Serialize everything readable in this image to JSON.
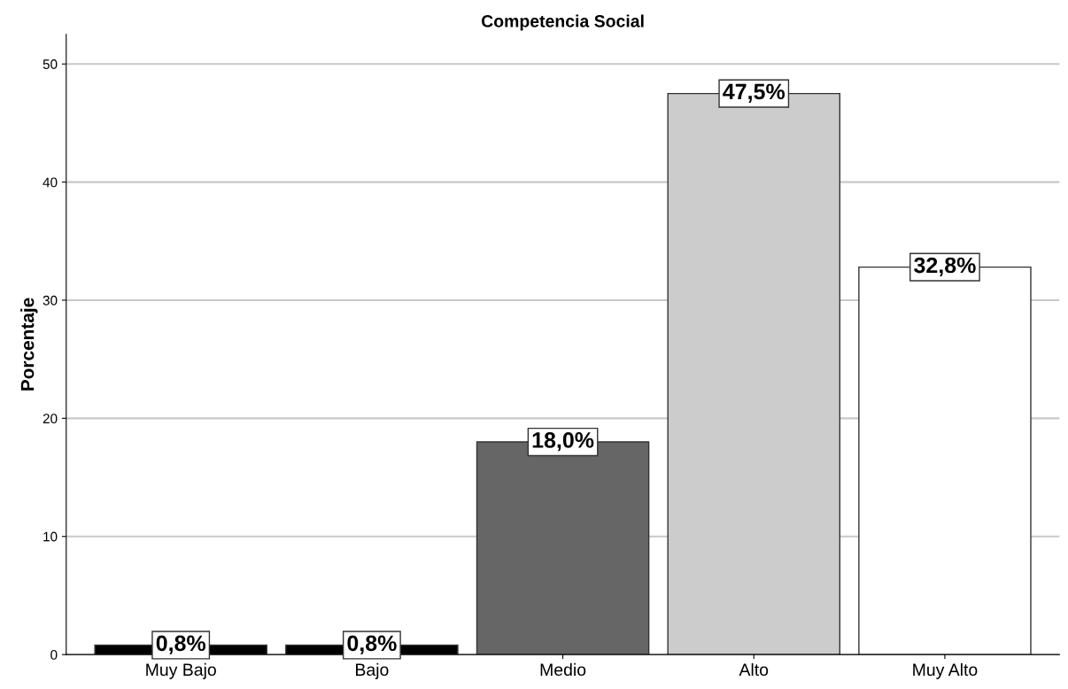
{
  "chart_data": {
    "type": "bar",
    "title": "Competencia Social",
    "ylabel": "Porcentaje",
    "categories": [
      "Muy Bajo",
      "Bajo",
      "Medio",
      "Alto",
      "Muy Alto"
    ],
    "values": [
      0.8,
      0.8,
      18.0,
      47.5,
      32.8
    ],
    "value_labels": [
      "0,8%",
      "0,8%",
      "18,0%",
      "47,5%",
      "32,8%"
    ],
    "colors": [
      "#000000",
      "#000000",
      "#666666",
      "#cccccc",
      "#ffffff"
    ],
    "ylim": [
      0,
      52.5
    ],
    "yticks": [
      0,
      10,
      20,
      30,
      40,
      50
    ],
    "grid": "y",
    "legend": false
  }
}
